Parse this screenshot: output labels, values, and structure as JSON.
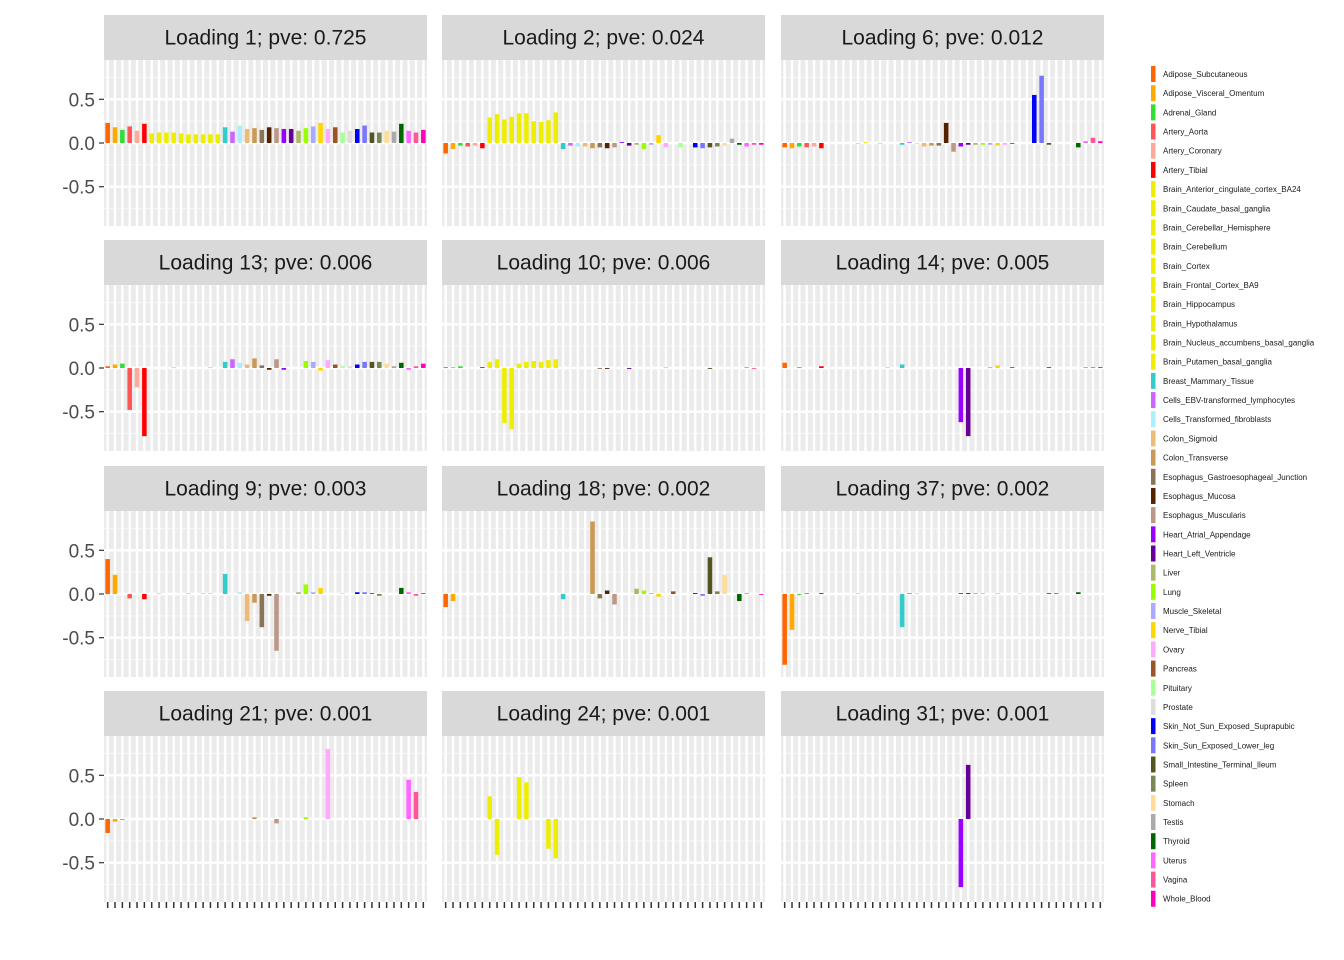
{
  "chart_data": {
    "type": "bar",
    "grid": true,
    "legend_position": "right",
    "ylim": [
      -0.95,
      0.95
    ],
    "y_ticks": [
      0.5,
      0.0,
      -0.5
    ],
    "y_tick_labels": [
      "0.5",
      "0.0",
      "-0.5"
    ],
    "tissues": [
      {
        "name": "Adipose_Subcutaneous",
        "color": "#FF6600"
      },
      {
        "name": "Adipose_Visceral_Omentum",
        "color": "#FFAA00"
      },
      {
        "name": "Adrenal_Gland",
        "color": "#33DD33"
      },
      {
        "name": "Artery_Aorta",
        "color": "#FF5555"
      },
      {
        "name": "Artery_Coronary",
        "color": "#FFAA99"
      },
      {
        "name": "Artery_Tibial",
        "color": "#FF0000"
      },
      {
        "name": "Brain_Anterior_cingulate_cortex_BA24",
        "color": "#EEEE00"
      },
      {
        "name": "Brain_Caudate_basal_ganglia",
        "color": "#EEEE00"
      },
      {
        "name": "Brain_Cerebellar_Hemisphere",
        "color": "#EEEE00"
      },
      {
        "name": "Brain_Cerebellum",
        "color": "#EEEE00"
      },
      {
        "name": "Brain_Cortex",
        "color": "#EEEE00"
      },
      {
        "name": "Brain_Frontal_Cortex_BA9",
        "color": "#EEEE00"
      },
      {
        "name": "Brain_Hippocampus",
        "color": "#EEEE00"
      },
      {
        "name": "Brain_Hypothalamus",
        "color": "#EEEE00"
      },
      {
        "name": "Brain_Nucleus_accumbens_basal_ganglia",
        "color": "#EEEE00"
      },
      {
        "name": "Brain_Putamen_basal_ganglia",
        "color": "#EEEE00"
      },
      {
        "name": "Breast_Mammary_Tissue",
        "color": "#33CCCC"
      },
      {
        "name": "Cells_EBV-transformed_lymphocytes",
        "color": "#CC66FF"
      },
      {
        "name": "Cells_Transformed_fibroblasts",
        "color": "#AAEEFF"
      },
      {
        "name": "Colon_Sigmoid",
        "color": "#EEBB77"
      },
      {
        "name": "Colon_Transverse",
        "color": "#CC9955"
      },
      {
        "name": "Esophagus_Gastroesophageal_Junction",
        "color": "#8B7355"
      },
      {
        "name": "Esophagus_Mucosa",
        "color": "#552200"
      },
      {
        "name": "Esophagus_Muscularis",
        "color": "#BB9988"
      },
      {
        "name": "Heart_Atrial_Appendage",
        "color": "#9900FF"
      },
      {
        "name": "Heart_Left_Ventricle",
        "color": "#660099"
      },
      {
        "name": "Liver",
        "color": "#AABB66"
      },
      {
        "name": "Lung",
        "color": "#99FF00"
      },
      {
        "name": "Muscle_Skeletal",
        "color": "#AAAAFF"
      },
      {
        "name": "Nerve_Tibial",
        "color": "#FFD700"
      },
      {
        "name": "Ovary",
        "color": "#FFAAFF"
      },
      {
        "name": "Pancreas",
        "color": "#995522"
      },
      {
        "name": "Pituitary",
        "color": "#AAFF99"
      },
      {
        "name": "Prostate",
        "color": "#DDDDDD"
      },
      {
        "name": "Skin_Not_Sun_Exposed_Suprapubic",
        "color": "#0000FF"
      },
      {
        "name": "Skin_Sun_Exposed_Lower_leg",
        "color": "#7777FF"
      },
      {
        "name": "Small_Intestine_Terminal_Ileum",
        "color": "#555522"
      },
      {
        "name": "Spleen",
        "color": "#778855"
      },
      {
        "name": "Stomach",
        "color": "#FFDD99"
      },
      {
        "name": "Testis",
        "color": "#AAAAAA"
      },
      {
        "name": "Thyroid",
        "color": "#006600"
      },
      {
        "name": "Uterus",
        "color": "#FF66FF"
      },
      {
        "name": "Vagina",
        "color": "#FF5599"
      },
      {
        "name": "Whole_Blood",
        "color": "#FF00BB"
      }
    ],
    "panels": [
      {
        "title": "Loading 1; pve: 0.725",
        "values": [
          0.23,
          0.18,
          0.15,
          0.19,
          0.14,
          0.22,
          0.11,
          0.12,
          0.12,
          0.12,
          0.11,
          0.1,
          0.1,
          0.1,
          0.1,
          0.1,
          0.18,
          0.13,
          0.2,
          0.16,
          0.17,
          0.15,
          0.18,
          0.17,
          0.16,
          0.16,
          0.14,
          0.17,
          0.19,
          0.23,
          0.16,
          0.18,
          0.12,
          0.14,
          0.16,
          0.2,
          0.12,
          0.12,
          0.14,
          0.13,
          0.22,
          0.14,
          0.12,
          0.15
        ]
      },
      {
        "title": "Loading 2; pve: 0.024",
        "values": [
          -0.12,
          -0.07,
          -0.03,
          -0.04,
          -0.03,
          -0.06,
          0.29,
          0.33,
          0.27,
          0.3,
          0.34,
          0.34,
          0.25,
          0.24,
          0.26,
          0.35,
          -0.07,
          -0.03,
          -0.04,
          -0.04,
          -0.06,
          -0.05,
          -0.06,
          -0.05,
          0.01,
          -0.03,
          -0.02,
          -0.07,
          -0.02,
          0.09,
          -0.05,
          0.0,
          -0.05,
          0.0,
          -0.05,
          -0.06,
          -0.05,
          -0.04,
          -0.03,
          0.05,
          -0.02,
          -0.04,
          -0.02,
          -0.02
        ]
      },
      {
        "title": "Loading 6; pve: 0.012",
        "values": [
          -0.05,
          -0.06,
          -0.04,
          -0.05,
          -0.04,
          -0.06,
          0.0,
          0.0,
          0.0,
          0.0,
          -0.01,
          0.01,
          0.0,
          -0.01,
          0.0,
          0.0,
          -0.02,
          0.01,
          -0.01,
          -0.04,
          -0.03,
          -0.03,
          0.23,
          -0.1,
          -0.04,
          -0.02,
          -0.02,
          -0.02,
          -0.02,
          -0.03,
          -0.02,
          -0.01,
          0.0,
          0.0,
          0.55,
          0.77,
          -0.02,
          0.0,
          0.0,
          0.0,
          -0.05,
          0.02,
          0.06,
          0.02
        ]
      },
      {
        "title": "Loading 13; pve: 0.006",
        "values": [
          0.02,
          0.04,
          0.05,
          -0.48,
          -0.22,
          -0.78,
          0.0,
          0.0,
          0.0,
          0.01,
          0.0,
          0.0,
          0.0,
          0.0,
          0.01,
          0.0,
          0.07,
          0.1,
          0.06,
          0.04,
          0.11,
          0.03,
          -0.02,
          0.1,
          -0.02,
          0.0,
          0.0,
          0.08,
          0.07,
          -0.03,
          0.09,
          0.04,
          0.02,
          0.02,
          0.04,
          0.07,
          0.07,
          0.07,
          0.05,
          0.02,
          0.06,
          -0.02,
          0.02,
          0.05
        ]
      },
      {
        "title": "Loading 10; pve: 0.006",
        "values": [
          0.01,
          0.01,
          0.02,
          0.0,
          0.0,
          0.01,
          0.07,
          0.1,
          -0.63,
          -0.7,
          0.05,
          0.07,
          0.08,
          0.07,
          0.09,
          0.1,
          0.0,
          0.0,
          0.0,
          0.0,
          0.0,
          -0.01,
          -0.01,
          0.0,
          0.0,
          -0.01,
          0.0,
          0.0,
          0.0,
          0.0,
          0.01,
          0.0,
          0.0,
          0.0,
          0.0,
          0.0,
          -0.01,
          0.0,
          0.0,
          0.0,
          0.0,
          0.01,
          -0.01,
          0.0
        ]
      },
      {
        "title": "Loading 14; pve: 0.005",
        "values": [
          0.06,
          0.0,
          0.01,
          0.0,
          0.0,
          0.02,
          0.0,
          0.0,
          0.0,
          0.0,
          0.0,
          0.0,
          0.0,
          0.0,
          0.01,
          0.0,
          0.04,
          0.0,
          0.0,
          0.0,
          0.0,
          0.0,
          0.0,
          0.0,
          -0.62,
          -0.78,
          0.0,
          0.0,
          0.01,
          0.03,
          0.0,
          0.01,
          0.0,
          0.0,
          0.0,
          0.0,
          0.01,
          0.0,
          0.0,
          0.0,
          0.0,
          0.01,
          0.01,
          0.01
        ]
      },
      {
        "title": "Loading 9; pve: 0.003",
        "values": [
          0.4,
          0.22,
          0.0,
          -0.05,
          0.0,
          -0.06,
          0.0,
          0.01,
          0.0,
          0.0,
          0.0,
          0.01,
          0.0,
          0.01,
          0.01,
          0.0,
          0.23,
          0.0,
          0.02,
          -0.31,
          -0.1,
          -0.38,
          -0.02,
          -0.65,
          0.0,
          0.0,
          0.02,
          0.11,
          0.02,
          0.07,
          0.0,
          0.0,
          0.01,
          0.0,
          0.02,
          0.02,
          0.01,
          -0.02,
          0.0,
          0.0,
          0.07,
          0.02,
          -0.02,
          0.01
        ]
      },
      {
        "title": "Loading 18; pve: 0.002",
        "values": [
          -0.15,
          -0.08,
          0.0,
          0.0,
          0.0,
          0.0,
          0.0,
          0.0,
          0.0,
          0.0,
          0.0,
          0.0,
          0.0,
          0.0,
          0.0,
          0.0,
          -0.06,
          0.0,
          0.0,
          0.0,
          0.83,
          -0.05,
          0.04,
          -0.12,
          0.0,
          0.0,
          0.06,
          0.04,
          0.01,
          -0.03,
          0.0,
          0.03,
          0.0,
          0.0,
          0.01,
          -0.02,
          0.42,
          0.03,
          0.22,
          0.0,
          -0.08,
          0.01,
          0.0,
          -0.01
        ]
      },
      {
        "title": "Loading 37; pve: 0.002",
        "values": [
          -0.81,
          -0.41,
          -0.01,
          0.01,
          0.0,
          0.01,
          0.0,
          0.0,
          0.0,
          0.0,
          0.01,
          0.0,
          0.0,
          0.0,
          0.0,
          0.0,
          -0.38,
          0.01,
          0.01,
          0.0,
          0.0,
          0.0,
          0.0,
          0.0,
          0.01,
          0.01,
          0.01,
          0.01,
          0.0,
          0.01,
          0.0,
          0.0,
          0.01,
          0.0,
          0.0,
          0.0,
          0.01,
          0.01,
          0.0,
          0.0,
          0.02,
          0.0,
          0.0,
          0.0
        ]
      },
      {
        "title": "Loading 21; pve: 0.001",
        "values": [
          -0.16,
          -0.03,
          -0.01,
          0.0,
          0.0,
          0.0,
          0.0,
          0.0,
          0.0,
          0.0,
          0.0,
          0.0,
          0.0,
          0.0,
          0.0,
          0.0,
          0.0,
          0.0,
          0.0,
          0.0,
          0.02,
          0.0,
          0.0,
          -0.05,
          0.0,
          0.0,
          0.0,
          0.02,
          0.0,
          0.0,
          0.8,
          0.0,
          0.0,
          0.0,
          0.0,
          0.0,
          0.0,
          0.0,
          0.0,
          0.0,
          0.0,
          0.45,
          0.31,
          0.0
        ]
      },
      {
        "title": "Loading 24; pve: 0.001",
        "values": [
          0.0,
          0.0,
          0.0,
          0.0,
          0.0,
          0.0,
          0.26,
          -0.41,
          0.0,
          0.0,
          0.48,
          0.42,
          0.0,
          0.0,
          -0.34,
          -0.45,
          0.0,
          0.0,
          0.0,
          0.0,
          0.0,
          0.0,
          0.0,
          0.0,
          0.0,
          0.0,
          0.0,
          0.0,
          0.0,
          0.0,
          0.0,
          0.0,
          0.0,
          0.0,
          0.0,
          0.0,
          0.0,
          0.0,
          0.0,
          0.0,
          0.0,
          0.0,
          0.0,
          0.0
        ]
      },
      {
        "title": "Loading 31; pve: 0.001",
        "values": [
          0.0,
          0.0,
          0.0,
          0.0,
          0.0,
          0.0,
          0.0,
          0.0,
          0.0,
          0.0,
          0.0,
          0.0,
          0.0,
          0.0,
          0.0,
          0.0,
          0.0,
          0.0,
          0.0,
          0.0,
          0.0,
          0.0,
          0.0,
          0.0,
          -0.78,
          0.62,
          0.0,
          0.0,
          0.0,
          0.0,
          0.0,
          0.0,
          0.0,
          0.0,
          0.0,
          0.0,
          0.0,
          0.0,
          0.0,
          0.0,
          0.0,
          0.0,
          0.0,
          0.0
        ]
      }
    ]
  }
}
